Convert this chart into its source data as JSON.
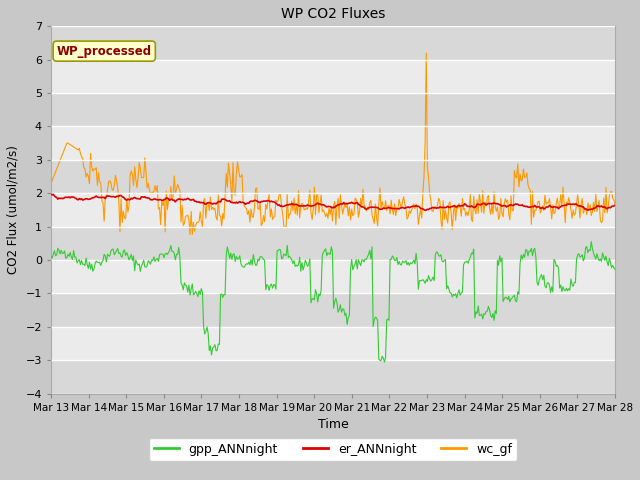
{
  "title": "WP CO2 Fluxes",
  "xlabel": "Time",
  "ylabel": "CO2 Flux (umol/m2/s)",
  "ylim": [
    -4.0,
    7.0
  ],
  "yticks": [
    -4.0,
    -3.0,
    -2.0,
    -1.0,
    0.0,
    1.0,
    2.0,
    3.0,
    4.0,
    5.0,
    6.0,
    7.0
  ],
  "xtick_labels": [
    "Mar 13",
    "Mar 14",
    "Mar 15",
    "Mar 16",
    "Mar 17",
    "Mar 18",
    "Mar 19",
    "Mar 20",
    "Mar 21",
    "Mar 22",
    "Mar 23",
    "Mar 24",
    "Mar 25",
    "Mar 26",
    "Mar 27",
    "Mar 28"
  ],
  "color_gpp": "#33cc33",
  "color_er": "#dd0000",
  "color_wc": "#ff9900",
  "legend_labels": [
    "gpp_ANNnight",
    "er_ANNnight",
    "wc_gf"
  ],
  "annotation_text": "WP_processed",
  "annotation_color": "#8b0000",
  "annotation_bg": "#ffffcc",
  "annotation_edge": "#999900",
  "fig_bg": "#c8c8c8",
  "plot_bg_light": "#ebebeb",
  "plot_bg_dark": "#d8d8d8",
  "n_points": 500,
  "seed": 42
}
